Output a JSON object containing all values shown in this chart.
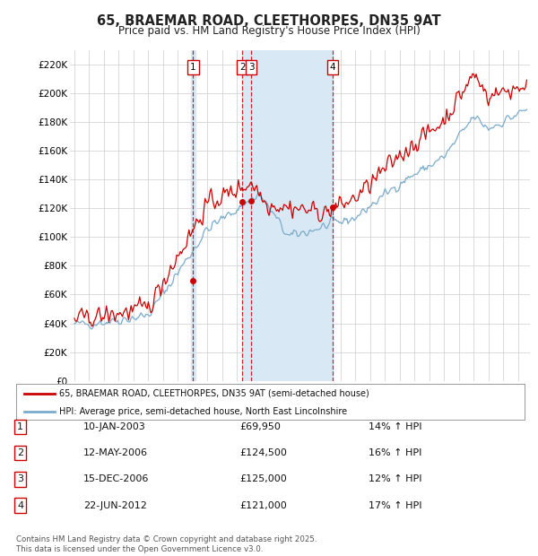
{
  "title": "65, BRAEMAR ROAD, CLEETHORPES, DN35 9AT",
  "subtitle": "Price paid vs. HM Land Registry's House Price Index (HPI)",
  "ylabel_ticks": [
    "£0",
    "£20K",
    "£40K",
    "£60K",
    "£80K",
    "£100K",
    "£120K",
    "£140K",
    "£160K",
    "£180K",
    "£200K",
    "£220K"
  ],
  "ytick_values": [
    0,
    20000,
    40000,
    60000,
    80000,
    100000,
    120000,
    140000,
    160000,
    180000,
    200000,
    220000
  ],
  "ylim": [
    0,
    230000
  ],
  "xlim_start": 1994.7,
  "xlim_end": 2025.8,
  "sale_dates_num": [
    2003.03,
    2006.36,
    2006.96,
    2012.47
  ],
  "sale_prices": [
    69950,
    124500,
    125000,
    121000
  ],
  "sale_labels": [
    "1",
    "2",
    "3",
    "4"
  ],
  "shade_x1": 2006.36,
  "shade_x2": 2012.47,
  "legend_property": "65, BRAEMAR ROAD, CLEETHORPES, DN35 9AT (semi-detached house)",
  "legend_hpi": "HPI: Average price, semi-detached house, North East Lincolnshire",
  "table_rows": [
    [
      "1",
      "10-JAN-2003",
      "£69,950",
      "14% ↑ HPI"
    ],
    [
      "2",
      "12-MAY-2006",
      "£124,500",
      "16% ↑ HPI"
    ],
    [
      "3",
      "15-DEC-2006",
      "£125,000",
      "12% ↑ HPI"
    ],
    [
      "4",
      "22-JUN-2012",
      "£121,000",
      "17% ↑ HPI"
    ]
  ],
  "footer": "Contains HM Land Registry data © Crown copyright and database right 2025.\nThis data is licensed under the Open Government Licence v3.0.",
  "property_color": "#cc0000",
  "hpi_color": "#7aabcc",
  "vline_color": "#cc0000",
  "shade_color": "#d8e8f5",
  "grid_color": "#cccccc",
  "background_color": "#ffffff",
  "label_box_color": "#cc0000"
}
